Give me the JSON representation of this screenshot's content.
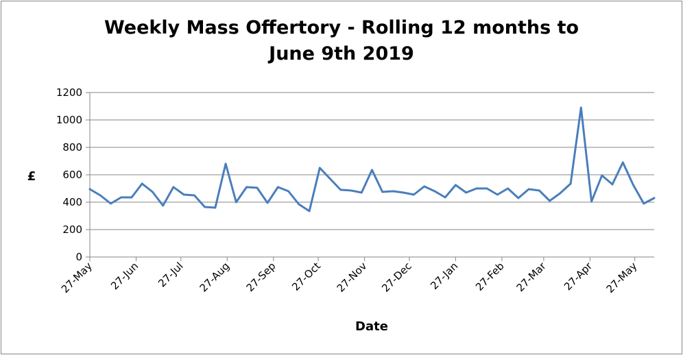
{
  "chart_data": {
    "type": "line",
    "title_line1": "Weekly Mass Offertory - Rolling 12 months to",
    "title_line2": "June 9th 2019",
    "xlabel": "Date",
    "ylabel": "£",
    "ylim": [
      0,
      1200
    ],
    "yticks": [
      0,
      200,
      400,
      600,
      800,
      1000,
      1200
    ],
    "grid": true,
    "legend": "none",
    "line_color": "#4a7ebb",
    "x_tick_labels": [
      "27-May",
      "27-Jun",
      "27-Jul",
      "27-Aug",
      "27-Sep",
      "27-Oct",
      "27-Nov",
      "27-Dec",
      "27-Jan",
      "27-Feb",
      "27-Mar",
      "27-Apr",
      "27-May"
    ],
    "x_tick_dates": [
      "2018-05-27",
      "2018-06-27",
      "2018-07-27",
      "2018-08-27",
      "2018-09-27",
      "2018-10-27",
      "2018-11-27",
      "2018-12-27",
      "2019-01-27",
      "2019-02-27",
      "2019-03-27",
      "2019-04-27",
      "2019-05-27"
    ],
    "x_range": [
      "2018-05-27",
      "2019-06-09"
    ],
    "series": [
      {
        "x": [
          "2018-05-27",
          "2018-06-03",
          "2018-06-10",
          "2018-06-17",
          "2018-06-24",
          "2018-07-01",
          "2018-07-08",
          "2018-07-15",
          "2018-07-22",
          "2018-07-29",
          "2018-08-05",
          "2018-08-12",
          "2018-08-19",
          "2018-08-26",
          "2018-09-02",
          "2018-09-09",
          "2018-09-16",
          "2018-09-23",
          "2018-09-30",
          "2018-10-07",
          "2018-10-14",
          "2018-10-21",
          "2018-10-28",
          "2018-11-04",
          "2018-11-11",
          "2018-11-18",
          "2018-11-25",
          "2018-12-02",
          "2018-12-09",
          "2018-12-16",
          "2018-12-23",
          "2018-12-30",
          "2019-01-06",
          "2019-01-13",
          "2019-01-20",
          "2019-01-27",
          "2019-02-03",
          "2019-02-10",
          "2019-02-17",
          "2019-02-24",
          "2019-03-03",
          "2019-03-10",
          "2019-03-17",
          "2019-03-24",
          "2019-03-31",
          "2019-04-07",
          "2019-04-14",
          "2019-04-21",
          "2019-04-28",
          "2019-05-05",
          "2019-05-12",
          "2019-05-19",
          "2019-05-26",
          "2019-06-02",
          "2019-06-09"
        ],
        "values": [
          495,
          450,
          390,
          435,
          435,
          535,
          475,
          375,
          510,
          455,
          450,
          365,
          360,
          680,
          400,
          510,
          505,
          395,
          510,
          480,
          385,
          335,
          650,
          570,
          490,
          485,
          470,
          635,
          475,
          480,
          470,
          455,
          515,
          480,
          435,
          525,
          470,
          500,
          500,
          455,
          500,
          430,
          495,
          485,
          410,
          465,
          535,
          1090,
          405,
          595,
          530,
          690,
          525,
          390,
          430
        ]
      }
    ]
  }
}
